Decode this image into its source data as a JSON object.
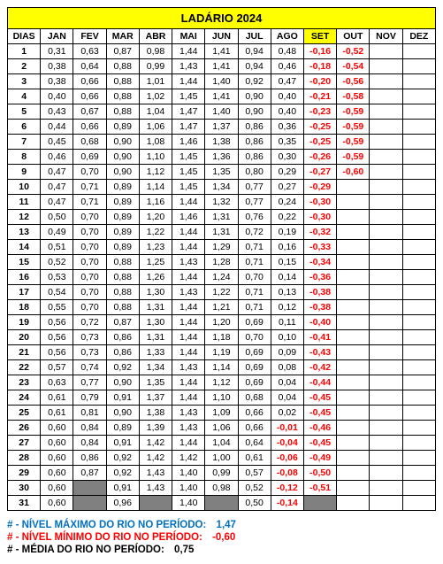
{
  "title": "LADÁRIO 2024",
  "headers": [
    "DIAS",
    "JAN",
    "FEV",
    "MAR",
    "ABR",
    "MAI",
    "JUN",
    "JUL",
    "AGO",
    "SET",
    "OUT",
    "NOV",
    "DEZ"
  ],
  "highlight_header_index": 9,
  "rows": [
    {
      "d": "1",
      "v": [
        "0,31",
        "0,63",
        "0,87",
        "0,98",
        "1,44",
        "1,41",
        "0,94",
        "0,48",
        "-0,16",
        "-0,52",
        "",
        ""
      ]
    },
    {
      "d": "2",
      "v": [
        "0,38",
        "0,64",
        "0,88",
        "0,99",
        "1,43",
        "1,41",
        "0,94",
        "0,46",
        "-0,18",
        "-0,54",
        "",
        ""
      ]
    },
    {
      "d": "3",
      "v": [
        "0,38",
        "0,66",
        "0,88",
        "1,01",
        "1,44",
        "1,40",
        "0,92",
        "0,47",
        "-0,20",
        "-0,56",
        "",
        ""
      ]
    },
    {
      "d": "4",
      "v": [
        "0,40",
        "0,66",
        "0,88",
        "1,02",
        "1,45",
        "1,41",
        "0,90",
        "0,40",
        "-0,21",
        "-0,58",
        "",
        ""
      ]
    },
    {
      "d": "5",
      "v": [
        "0,43",
        "0,67",
        "0,88",
        "1,04",
        "1,47",
        "1,40",
        "0,90",
        "0,40",
        "-0,23",
        "-0,59",
        "",
        ""
      ]
    },
    {
      "d": "6",
      "v": [
        "0,44",
        "0,66",
        "0,89",
        "1,06",
        "1,47",
        "1,37",
        "0,86",
        "0,36",
        "-0,25",
        "-0,59",
        "",
        ""
      ]
    },
    {
      "d": "7",
      "v": [
        "0,45",
        "0,68",
        "0,90",
        "1,08",
        "1,46",
        "1,38",
        "0,86",
        "0,35",
        "-0,25",
        "-0,59",
        "",
        ""
      ]
    },
    {
      "d": "8",
      "v": [
        "0,46",
        "0,69",
        "0,90",
        "1,10",
        "1,45",
        "1,36",
        "0,86",
        "0,30",
        "-0,26",
        "-0,59",
        "",
        ""
      ]
    },
    {
      "d": "9",
      "v": [
        "0,47",
        "0,70",
        "0,90",
        "1,12",
        "1,45",
        "1,35",
        "0,80",
        "0,29",
        "-0,27",
        "-0,60",
        "",
        ""
      ]
    },
    {
      "d": "10",
      "v": [
        "0,47",
        "0,71",
        "0,89",
        "1,14",
        "1,45",
        "1,34",
        "0,77",
        "0,27",
        "-0,29",
        "",
        "",
        ""
      ]
    },
    {
      "d": "11",
      "v": [
        "0,47",
        "0,71",
        "0,89",
        "1,16",
        "1,44",
        "1,32",
        "0,77",
        "0,24",
        "-0,30",
        "",
        "",
        ""
      ]
    },
    {
      "d": "12",
      "v": [
        "0,50",
        "0,70",
        "0,89",
        "1,20",
        "1,46",
        "1,31",
        "0,76",
        "0,22",
        "-0,30",
        "",
        "",
        ""
      ]
    },
    {
      "d": "13",
      "v": [
        "0,49",
        "0,70",
        "0,89",
        "1,22",
        "1,44",
        "1,31",
        "0,72",
        "0,19",
        "-0,32",
        "",
        "",
        ""
      ]
    },
    {
      "d": "14",
      "v": [
        "0,51",
        "0,70",
        "0,89",
        "1,23",
        "1,44",
        "1,29",
        "0,71",
        "0,16",
        "-0,33",
        "",
        "",
        ""
      ]
    },
    {
      "d": "15",
      "v": [
        "0,52",
        "0,70",
        "0,88",
        "1,25",
        "1,43",
        "1,28",
        "0,71",
        "0,15",
        "-0,34",
        "",
        "",
        ""
      ]
    },
    {
      "d": "16",
      "v": [
        "0,53",
        "0,70",
        "0,88",
        "1,26",
        "1,44",
        "1,24",
        "0,70",
        "0,14",
        "-0,36",
        "",
        "",
        ""
      ]
    },
    {
      "d": "17",
      "v": [
        "0,54",
        "0,70",
        "0,88",
        "1,30",
        "1,43",
        "1,22",
        "0,71",
        "0,13",
        "-0,38",
        "",
        "",
        ""
      ]
    },
    {
      "d": "18",
      "v": [
        "0,55",
        "0,70",
        "0,88",
        "1,31",
        "1,44",
        "1,21",
        "0,71",
        "0,12",
        "-0,38",
        "",
        "",
        ""
      ]
    },
    {
      "d": "19",
      "v": [
        "0,56",
        "0,72",
        "0,87",
        "1,30",
        "1,44",
        "1,20",
        "0,69",
        "0,11",
        "-0,40",
        "",
        "",
        ""
      ]
    },
    {
      "d": "20",
      "v": [
        "0,56",
        "0,73",
        "0,86",
        "1,31",
        "1,44",
        "1,18",
        "0,70",
        "0,10",
        "-0,41",
        "",
        "",
        ""
      ]
    },
    {
      "d": "21",
      "v": [
        "0,56",
        "0,73",
        "0,86",
        "1,33",
        "1,44",
        "1,19",
        "0,69",
        "0,09",
        "-0,43",
        "",
        "",
        ""
      ]
    },
    {
      "d": "22",
      "v": [
        "0,57",
        "0,74",
        "0,92",
        "1,34",
        "1,43",
        "1,14",
        "0,69",
        "0,08",
        "-0,42",
        "",
        "",
        ""
      ]
    },
    {
      "d": "23",
      "v": [
        "0,63",
        "0,77",
        "0,90",
        "1,35",
        "1,44",
        "1,12",
        "0,69",
        "0,04",
        "-0,44",
        "",
        "",
        ""
      ]
    },
    {
      "d": "24",
      "v": [
        "0,61",
        "0,79",
        "0,91",
        "1,37",
        "1,44",
        "1,10",
        "0,68",
        "0,04",
        "-0,45",
        "",
        "",
        ""
      ]
    },
    {
      "d": "25",
      "v": [
        "0,61",
        "0,81",
        "0,90",
        "1,38",
        "1,43",
        "1,09",
        "0,66",
        "0,02",
        "-0,45",
        "",
        "",
        ""
      ]
    },
    {
      "d": "26",
      "v": [
        "0,60",
        "0,84",
        "0,89",
        "1,39",
        "1,43",
        "1,06",
        "0,66",
        "-0,01",
        "-0,46",
        "",
        "",
        ""
      ]
    },
    {
      "d": "27",
      "v": [
        "0,60",
        "0,84",
        "0,91",
        "1,42",
        "1,44",
        "1,04",
        "0,64",
        "-0,04",
        "-0,45",
        "",
        "",
        ""
      ]
    },
    {
      "d": "28",
      "v": [
        "0,60",
        "0,86",
        "0,92",
        "1,42",
        "1,42",
        "1,00",
        "0,61",
        "-0,06",
        "-0,49",
        "",
        "",
        ""
      ]
    },
    {
      "d": "29",
      "v": [
        "0,60",
        "0,87",
        "0,92",
        "1,43",
        "1,40",
        "0,99",
        "0,57",
        "-0,08",
        "-0,50",
        "",
        "",
        ""
      ]
    },
    {
      "d": "30",
      "v": [
        "0,60",
        "GRAY",
        "0,91",
        "1,43",
        "1,40",
        "0,98",
        "0,52",
        "-0,12",
        "-0,51",
        "",
        "",
        ""
      ]
    },
    {
      "d": "31",
      "v": [
        "0,60",
        "GRAY",
        "0,96",
        "GRAY",
        "1,40",
        "GRAY",
        "0,50",
        "-0,14",
        "GRAY",
        "",
        "",
        ""
      ]
    }
  ],
  "footer": {
    "max_label": "# - NÍVEL MÁXIMO DO RIO NO PERÍODO:",
    "max_value": "1,47",
    "min_label": "# - NÍVEL MÍNIMO DO RIO NO PERÍODO:",
    "min_value": "-0,60",
    "avg_label": "# - MÉDIA DO RIO NO PERÍODO:",
    "avg_value": "0,75"
  }
}
